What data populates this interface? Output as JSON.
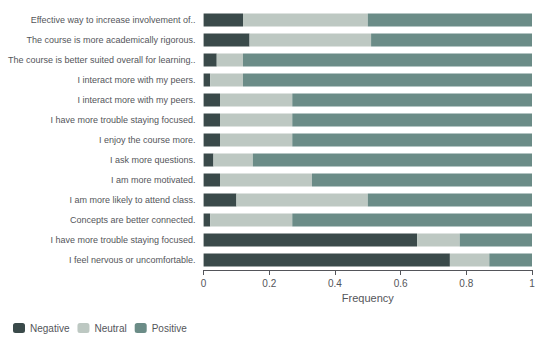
{
  "chart_data": {
    "type": "bar",
    "orientation": "horizontal",
    "stacked": true,
    "xlabel": "Frequency",
    "categories": [
      "Effective way to increase involvement of..",
      "The course is more academically rigorous.",
      "The course is better suited overall for learning..",
      "I interact more with my peers.",
      "I interact more with my peers.",
      "I have more trouble staying focused.",
      "I enjoy the course more.",
      "I ask more questions.",
      "I am more motivated.",
      "I am more likely to attend class.",
      "Concepts are better connected.",
      "I have more trouble staying focused.",
      "I feel nervous or uncomfortable."
    ],
    "series": [
      {
        "name": "Negative",
        "color": "#3a4a4a",
        "values": [
          0.12,
          0.14,
          0.04,
          0.02,
          0.05,
          0.05,
          0.05,
          0.03,
          0.05,
          0.1,
          0.02,
          0.65,
          0.75
        ]
      },
      {
        "name": "Neutral",
        "color": "#bdc8c2",
        "values": [
          0.38,
          0.37,
          0.08,
          0.1,
          0.22,
          0.22,
          0.22,
          0.12,
          0.28,
          0.4,
          0.25,
          0.13,
          0.12
        ]
      },
      {
        "name": "Positive",
        "color": "#6b8c87",
        "values": [
          0.5,
          0.49,
          0.88,
          0.88,
          0.73,
          0.73,
          0.73,
          0.85,
          0.67,
          0.5,
          0.73,
          0.22,
          0.13
        ]
      }
    ],
    "xlim": [
      0,
      1.0
    ],
    "xticks": [
      0,
      0.2,
      0.4,
      0.6,
      0.8,
      1.0
    ],
    "grid": false,
    "legend": "lower left"
  }
}
